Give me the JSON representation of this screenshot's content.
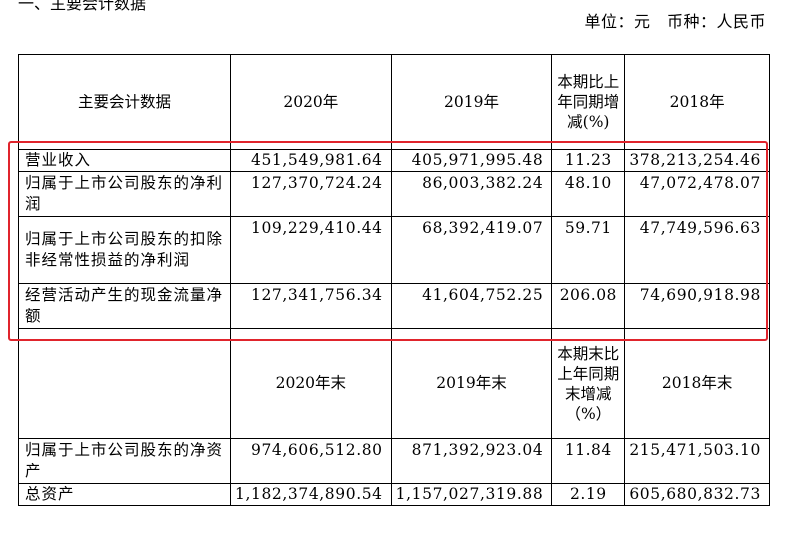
{
  "top_text": "一、主要会计数据",
  "unit_line": "单位：元　币种：人民币",
  "header": {
    "col1": "主要会计数据",
    "col2": "2020年",
    "col3": "2019年",
    "col4": "本期比上年同期增减(%)",
    "col5": "2018年"
  },
  "rows": [
    {
      "label": "营业收入",
      "v2020": "451,549,981.64",
      "v2019": "405,971,995.48",
      "pct": "11.23",
      "v2018": "378,213,254.46"
    },
    {
      "label": "归属于上市公司股东的净利润",
      "v2020": "127,370,724.24",
      "v2019": "86,003,382.24",
      "pct": "48.10",
      "v2018": "47,072,478.07"
    },
    {
      "label": "归属于上市公司股东的扣除非经常性损益的净利润",
      "v2020": "109,229,410.44",
      "v2019": "68,392,419.07",
      "pct": "59.71",
      "v2018": "47,749,596.63"
    },
    {
      "label": "经营活动产生的现金流量净额",
      "v2020": "127,341,756.34",
      "v2019": "41,604,752.25",
      "pct": "206.08",
      "v2018": "74,690,918.98"
    }
  ],
  "header2": {
    "col1": "",
    "col2": "2020年末",
    "col3": "2019年末",
    "col4": "本期末比上年同期末增减（%）",
    "col5": "2018年末"
  },
  "rows2": [
    {
      "label": "归属于上市公司股东的净资产",
      "v2020": "974,606,512.80",
      "v2019": "871,392,923.04",
      "pct": "11.84",
      "v2018": "215,471,503.10"
    },
    {
      "label": "总资产",
      "v2020": "1,182,374,890.54",
      "v2019": "1,157,027,319.88",
      "pct": "2.19",
      "v2018": "605,680,832.73"
    }
  ],
  "highlight_color": "#e0242c"
}
